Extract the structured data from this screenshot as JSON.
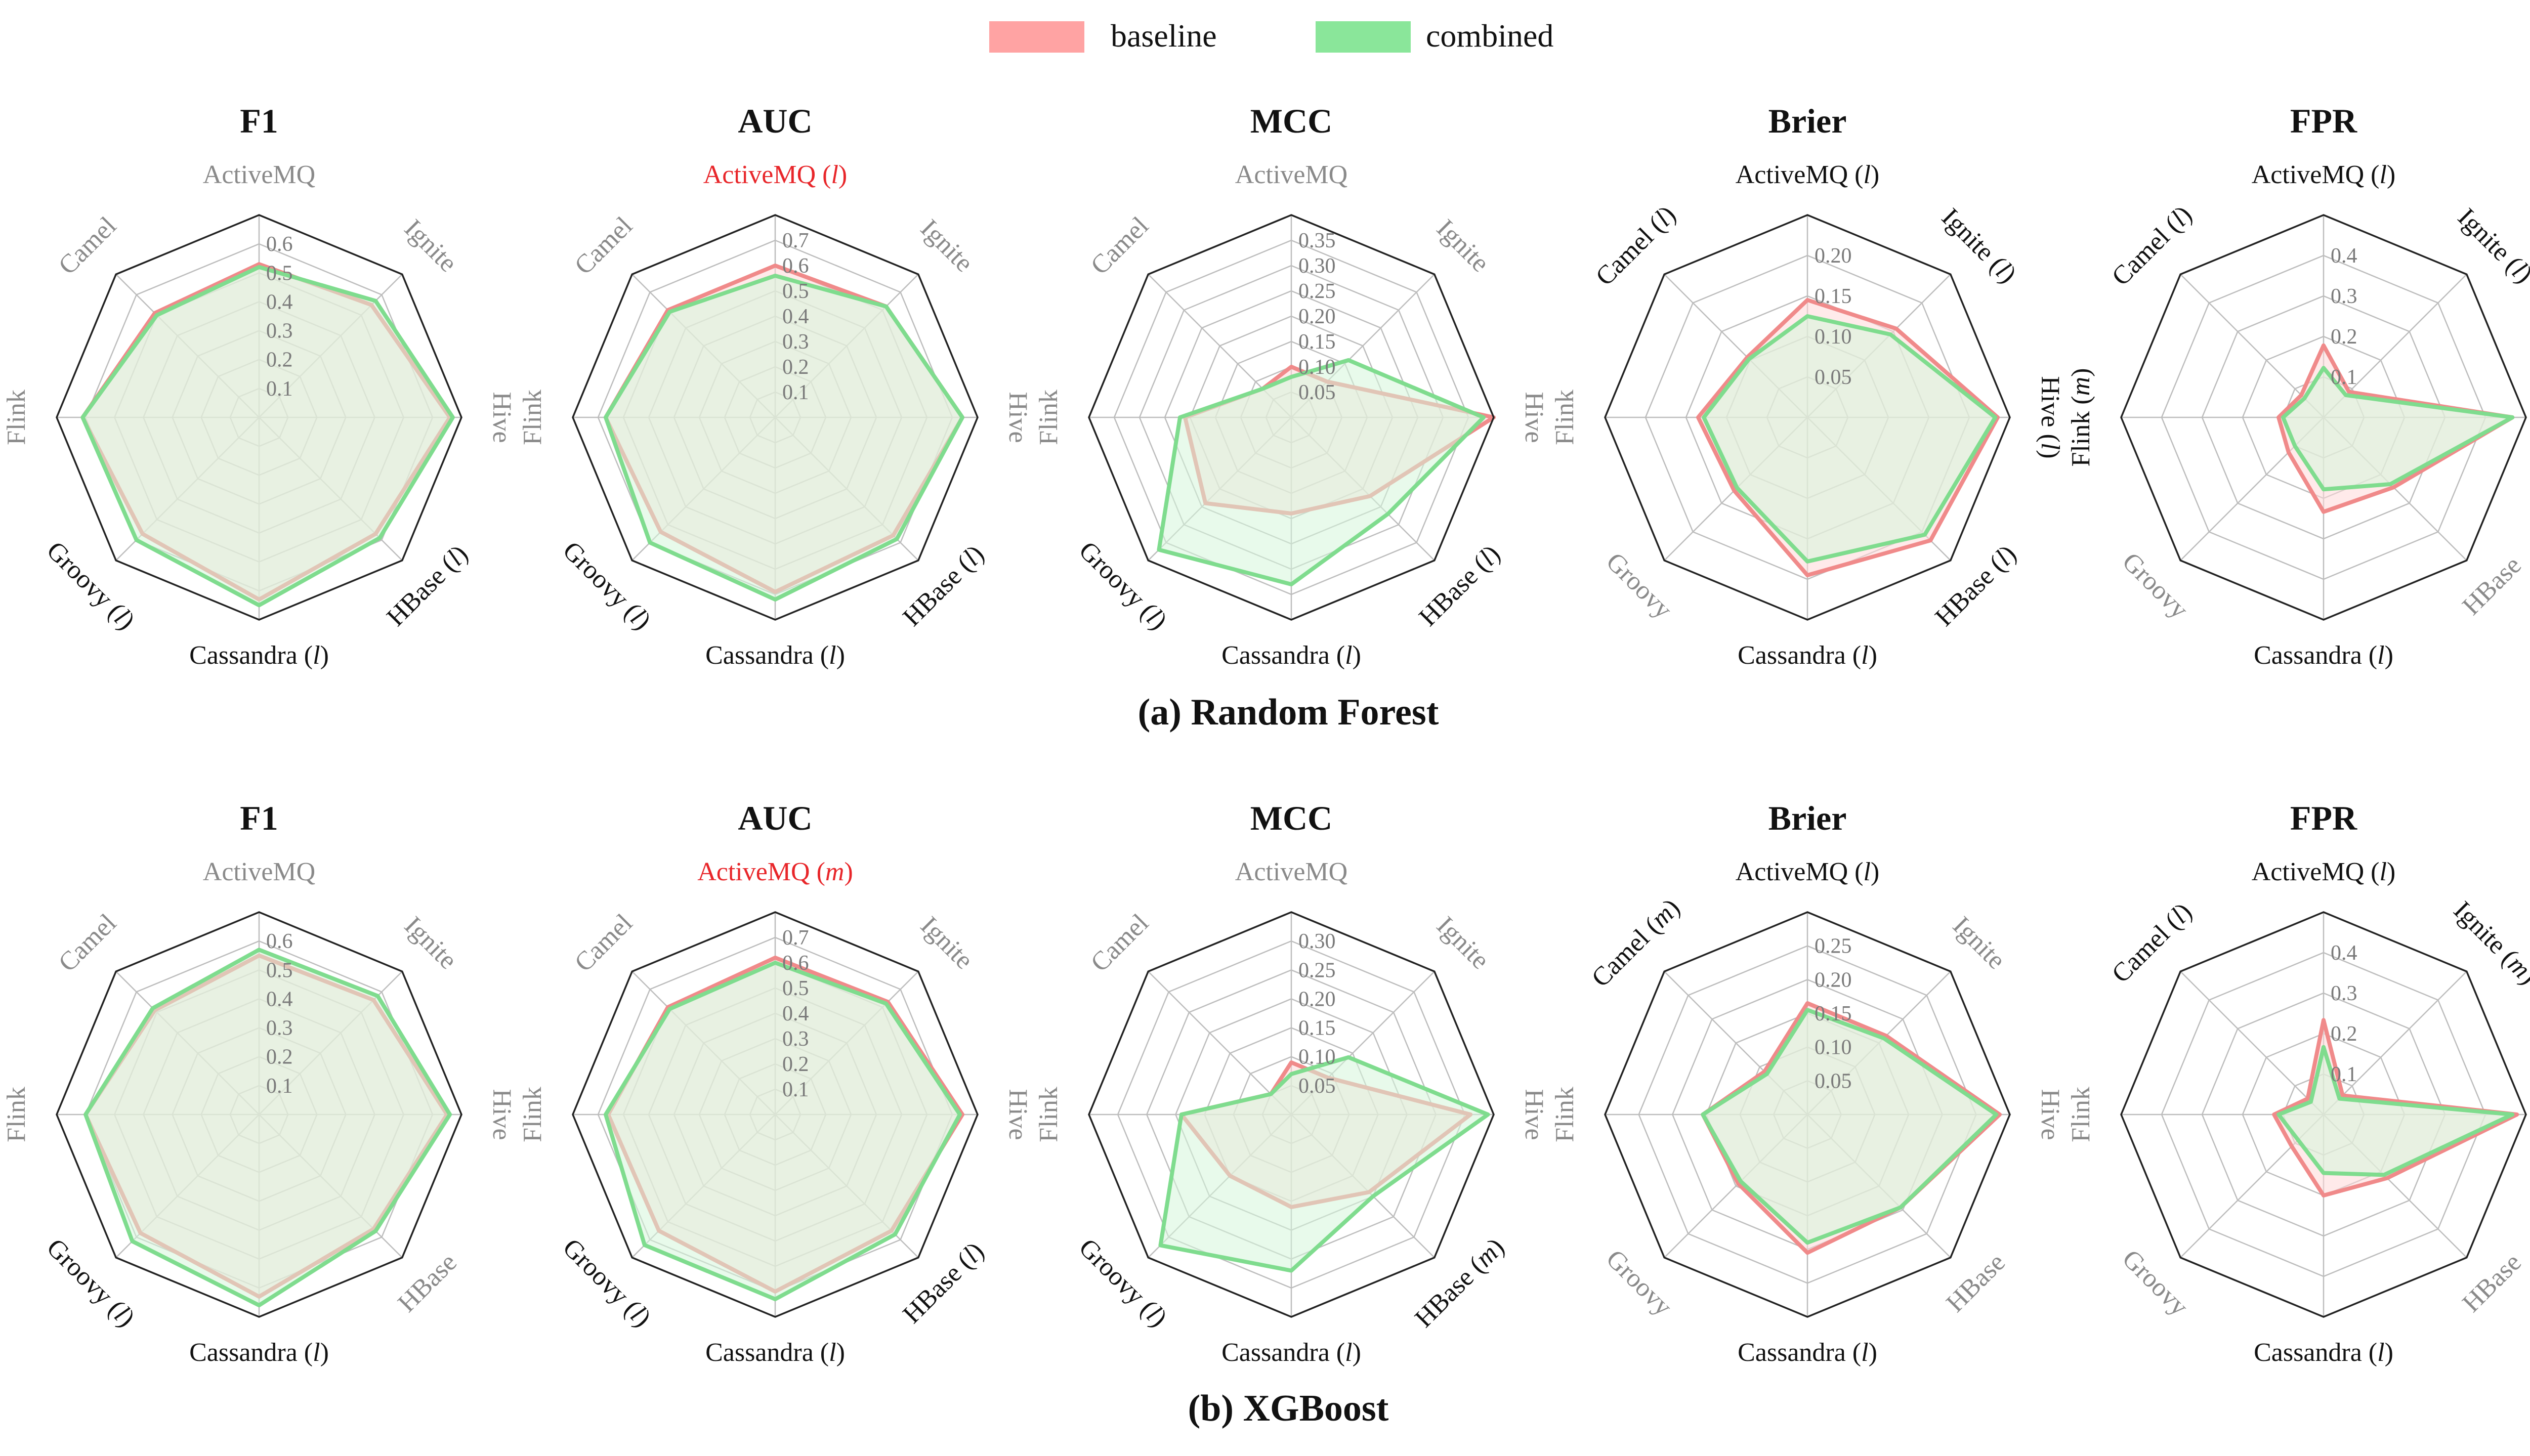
{
  "legend": [
    {
      "name": "baseline",
      "color": "#FFA3A3"
    },
    {
      "name": "combined",
      "color": "#8AE69A"
    }
  ],
  "colors": {
    "baseline_fill": "#FFD9D9",
    "baseline_line": "#F08A8A",
    "combined_fill": "#D6F5DA",
    "combined_line": "#7FDC8E",
    "significant_label": "#111111",
    "nonsignificant_label": "#8A8A8A",
    "highlight_label": "#E8262A",
    "grid": "#BDBDBD",
    "frame": "#222222"
  },
  "sections": [
    {
      "caption": "(a) Random Forest"
    },
    {
      "caption": "(b) XGBoost"
    }
  ],
  "chart_data": [
    {
      "type": "radar",
      "section": 0,
      "title": "F1",
      "rmax": 0.7,
      "ticks": [
        "0.1",
        "0.2",
        "0.3",
        "0.4",
        "0.5",
        "0.6"
      ],
      "categories": [
        {
          "name": "ActiveMQ",
          "mark": "",
          "style": "gray"
        },
        {
          "name": "Ignite",
          "mark": "",
          "style": "gray"
        },
        {
          "name": "Hive",
          "mark": "",
          "style": "gray"
        },
        {
          "name": "HBase",
          "mark": "l",
          "style": "black"
        },
        {
          "name": "Cassandra",
          "mark": "l",
          "style": "black"
        },
        {
          "name": "Groovy",
          "mark": "l",
          "style": "black"
        },
        {
          "name": "Flink",
          "mark": "",
          "style": "gray"
        },
        {
          "name": "Camel",
          "mark": "",
          "style": "gray"
        }
      ],
      "series": [
        {
          "name": "baseline",
          "values": [
            0.53,
            0.55,
            0.66,
            0.57,
            0.63,
            0.57,
            0.61,
            0.51
          ]
        },
        {
          "name": "combined",
          "values": [
            0.52,
            0.57,
            0.67,
            0.59,
            0.65,
            0.6,
            0.61,
            0.5
          ]
        }
      ]
    },
    {
      "type": "radar",
      "section": 0,
      "title": "AUC",
      "rmax": 0.8,
      "ticks": [
        "0.1",
        "0.2",
        "0.3",
        "0.4",
        "0.5",
        "0.6",
        "0.7"
      ],
      "categories": [
        {
          "name": "ActiveMQ",
          "mark": "l",
          "style": "red"
        },
        {
          "name": "Ignite",
          "mark": "",
          "style": "gray"
        },
        {
          "name": "Hive",
          "mark": "",
          "style": "gray"
        },
        {
          "name": "HBase",
          "mark": "l",
          "style": "black"
        },
        {
          "name": "Cassandra",
          "mark": "l",
          "style": "black"
        },
        {
          "name": "Groovy",
          "mark": "l",
          "style": "black"
        },
        {
          "name": "Flink",
          "mark": "",
          "style": "gray"
        },
        {
          "name": "Camel",
          "mark": "",
          "style": "gray"
        }
      ],
      "series": [
        {
          "name": "baseline",
          "values": [
            0.6,
            0.62,
            0.74,
            0.66,
            0.69,
            0.64,
            0.67,
            0.6
          ]
        },
        {
          "name": "combined",
          "values": [
            0.56,
            0.62,
            0.74,
            0.68,
            0.72,
            0.7,
            0.67,
            0.59
          ]
        }
      ]
    },
    {
      "type": "radar",
      "section": 0,
      "title": "MCC",
      "rmax": 0.4,
      "ticks": [
        "0.05",
        "0.10",
        "0.15",
        "0.20",
        "0.25",
        "0.30",
        "0.35"
      ],
      "categories": [
        {
          "name": "ActiveMQ",
          "mark": "",
          "style": "gray"
        },
        {
          "name": "Ignite",
          "mark": "",
          "style": "gray"
        },
        {
          "name": "Hive",
          "mark": "",
          "style": "gray"
        },
        {
          "name": "HBase",
          "mark": "l",
          "style": "black"
        },
        {
          "name": "Cassandra",
          "mark": "l",
          "style": "black"
        },
        {
          "name": "Groovy",
          "mark": "l",
          "style": "black"
        },
        {
          "name": "Flink",
          "mark": "",
          "style": "gray"
        },
        {
          "name": "Camel",
          "mark": "",
          "style": "gray"
        }
      ],
      "series": [
        {
          "name": "baseline",
          "values": [
            0.1,
            0.1,
            0.4,
            0.22,
            0.19,
            0.24,
            0.21,
            0.08
          ]
        },
        {
          "name": "combined",
          "values": [
            0.08,
            0.16,
            0.38,
            0.27,
            0.33,
            0.37,
            0.22,
            0.08
          ]
        }
      ]
    },
    {
      "type": "radar",
      "section": 0,
      "title": "Brier",
      "rmax": 0.25,
      "ticks": [
        "0.05",
        "0.10",
        "0.15",
        "0.20"
      ],
      "categories": [
        {
          "name": "ActiveMQ",
          "mark": "l",
          "style": "black"
        },
        {
          "name": "Ignite",
          "mark": "l",
          "style": "black"
        },
        {
          "name": "Hive",
          "mark": "l",
          "style": "black"
        },
        {
          "name": "HBase",
          "mark": "l",
          "style": "black"
        },
        {
          "name": "Cassandra",
          "mark": "l",
          "style": "black"
        },
        {
          "name": "Groovy",
          "mark": "",
          "style": "gray"
        },
        {
          "name": "Flink",
          "mark": "",
          "style": "gray"
        },
        {
          "name": "Camel",
          "mark": "l",
          "style": "black"
        }
      ],
      "series": [
        {
          "name": "baseline",
          "values": [
            0.145,
            0.155,
            0.235,
            0.215,
            0.195,
            0.128,
            0.135,
            0.105
          ]
        },
        {
          "name": "combined",
          "values": [
            0.125,
            0.145,
            0.232,
            0.205,
            0.178,
            0.123,
            0.128,
            0.102
          ]
        }
      ]
    },
    {
      "type": "radar",
      "section": 0,
      "title": "FPR",
      "rmax": 0.45,
      "ticks": [
        "0.1",
        "0.2",
        "0.3",
        "0.4"
      ],
      "categories": [
        {
          "name": "ActiveMQ",
          "mark": "l",
          "style": "black"
        },
        {
          "name": "Ignite",
          "mark": "l",
          "style": "black"
        },
        {
          "name": "Hive",
          "mark": "",
          "style": "gray"
        },
        {
          "name": "HBase",
          "mark": "",
          "style": "gray"
        },
        {
          "name": "Cassandra",
          "mark": "l",
          "style": "black"
        },
        {
          "name": "Groovy",
          "mark": "",
          "style": "gray"
        },
        {
          "name": "Flink",
          "mark": "m",
          "style": "black"
        },
        {
          "name": "Camel",
          "mark": "l",
          "style": "black"
        }
      ],
      "series": [
        {
          "name": "baseline",
          "values": [
            0.16,
            0.08,
            0.42,
            0.22,
            0.21,
            0.11,
            0.1,
            0.07
          ]
        },
        {
          "name": "combined",
          "values": [
            0.11,
            0.07,
            0.42,
            0.21,
            0.16,
            0.09,
            0.09,
            0.06
          ]
        }
      ]
    },
    {
      "type": "radar",
      "section": 1,
      "title": "F1",
      "rmax": 0.7,
      "ticks": [
        "0.1",
        "0.2",
        "0.3",
        "0.4",
        "0.5",
        "0.6"
      ],
      "categories": [
        {
          "name": "ActiveMQ",
          "mark": "",
          "style": "gray"
        },
        {
          "name": "Ignite",
          "mark": "",
          "style": "gray"
        },
        {
          "name": "Hive",
          "mark": "",
          "style": "gray"
        },
        {
          "name": "HBase",
          "mark": "",
          "style": "gray"
        },
        {
          "name": "Cassandra",
          "mark": "l",
          "style": "black"
        },
        {
          "name": "Groovy",
          "mark": "l",
          "style": "black"
        },
        {
          "name": "Flink",
          "mark": "",
          "style": "gray"
        },
        {
          "name": "Camel",
          "mark": "",
          "style": "gray"
        }
      ],
      "series": [
        {
          "name": "baseline",
          "values": [
            0.55,
            0.56,
            0.65,
            0.56,
            0.63,
            0.58,
            0.6,
            0.51
          ]
        },
        {
          "name": "combined",
          "values": [
            0.57,
            0.58,
            0.66,
            0.57,
            0.66,
            0.62,
            0.6,
            0.52
          ]
        }
      ]
    },
    {
      "type": "radar",
      "section": 1,
      "title": "AUC",
      "rmax": 0.8,
      "ticks": [
        "0.1",
        "0.2",
        "0.3",
        "0.4",
        "0.5",
        "0.6",
        "0.7"
      ],
      "categories": [
        {
          "name": "ActiveMQ",
          "mark": "m",
          "style": "red"
        },
        {
          "name": "Ignite",
          "mark": "",
          "style": "gray"
        },
        {
          "name": "Hive",
          "mark": "",
          "style": "gray"
        },
        {
          "name": "HBase",
          "mark": "l",
          "style": "black"
        },
        {
          "name": "Cassandra",
          "mark": "l",
          "style": "black"
        },
        {
          "name": "Groovy",
          "mark": "l",
          "style": "black"
        },
        {
          "name": "Flink",
          "mark": "",
          "style": "gray"
        },
        {
          "name": "Camel",
          "mark": "",
          "style": "gray"
        }
      ],
      "series": [
        {
          "name": "baseline",
          "values": [
            0.62,
            0.63,
            0.74,
            0.65,
            0.7,
            0.65,
            0.66,
            0.6
          ]
        },
        {
          "name": "combined",
          "values": [
            0.6,
            0.62,
            0.73,
            0.67,
            0.73,
            0.73,
            0.67,
            0.59
          ]
        }
      ]
    },
    {
      "type": "radar",
      "section": 1,
      "title": "MCC",
      "rmax": 0.35,
      "ticks": [
        "0.05",
        "0.10",
        "0.15",
        "0.20",
        "0.25",
        "0.30"
      ],
      "categories": [
        {
          "name": "ActiveMQ",
          "mark": "",
          "style": "gray"
        },
        {
          "name": "Ignite",
          "mark": "",
          "style": "gray"
        },
        {
          "name": "Hive",
          "mark": "",
          "style": "gray"
        },
        {
          "name": "HBase",
          "mark": "m",
          "style": "black"
        },
        {
          "name": "Cassandra",
          "mark": "l",
          "style": "black"
        },
        {
          "name": "Groovy",
          "mark": "l",
          "style": "black"
        },
        {
          "name": "Flink",
          "mark": "",
          "style": "gray"
        },
        {
          "name": "Camel",
          "mark": "",
          "style": "gray"
        }
      ],
      "series": [
        {
          "name": "baseline",
          "values": [
            0.09,
            0.09,
            0.31,
            0.19,
            0.16,
            0.15,
            0.19,
            0.05
          ]
        },
        {
          "name": "combined",
          "values": [
            0.07,
            0.14,
            0.34,
            0.2,
            0.27,
            0.32,
            0.19,
            0.05
          ]
        }
      ]
    },
    {
      "type": "radar",
      "section": 1,
      "title": "Brier",
      "rmax": 0.3,
      "ticks": [
        "0.05",
        "0.10",
        "0.15",
        "0.20",
        "0.25"
      ],
      "categories": [
        {
          "name": "ActiveMQ",
          "mark": "l",
          "style": "black"
        },
        {
          "name": "Ignite",
          "mark": "",
          "style": "gray"
        },
        {
          "name": "Hive",
          "mark": "",
          "style": "gray"
        },
        {
          "name": "HBase",
          "mark": "",
          "style": "gray"
        },
        {
          "name": "Cassandra",
          "mark": "l",
          "style": "black"
        },
        {
          "name": "Groovy",
          "mark": "",
          "style": "gray"
        },
        {
          "name": "Flink",
          "mark": "",
          "style": "gray"
        },
        {
          "name": "Camel",
          "mark": "m",
          "style": "black"
        }
      ],
      "series": [
        {
          "name": "baseline",
          "values": [
            0.165,
            0.165,
            0.285,
            0.195,
            0.205,
            0.145,
            0.155,
            0.09
          ]
        },
        {
          "name": "combined",
          "values": [
            0.155,
            0.16,
            0.28,
            0.195,
            0.19,
            0.14,
            0.155,
            0.085
          ]
        }
      ]
    },
    {
      "type": "radar",
      "section": 1,
      "title": "FPR",
      "rmax": 0.45,
      "ticks": [
        "0.1",
        "0.2",
        "0.3",
        "0.4"
      ],
      "categories": [
        {
          "name": "ActiveMQ",
          "mark": "l",
          "style": "black"
        },
        {
          "name": "Ignite",
          "mark": "m",
          "style": "black"
        },
        {
          "name": "Hive",
          "mark": "",
          "style": "gray"
        },
        {
          "name": "HBase",
          "mark": "",
          "style": "gray"
        },
        {
          "name": "Cassandra",
          "mark": "l",
          "style": "black"
        },
        {
          "name": "Groovy",
          "mark": "",
          "style": "gray"
        },
        {
          "name": "Flink",
          "mark": "",
          "style": "gray"
        },
        {
          "name": "Camel",
          "mark": "l",
          "style": "black"
        }
      ],
      "series": [
        {
          "name": "baseline",
          "values": [
            0.21,
            0.06,
            0.43,
            0.2,
            0.18,
            0.1,
            0.11,
            0.05
          ]
        },
        {
          "name": "combined",
          "values": [
            0.15,
            0.05,
            0.42,
            0.19,
            0.13,
            0.08,
            0.1,
            0.04
          ]
        }
      ]
    }
  ]
}
